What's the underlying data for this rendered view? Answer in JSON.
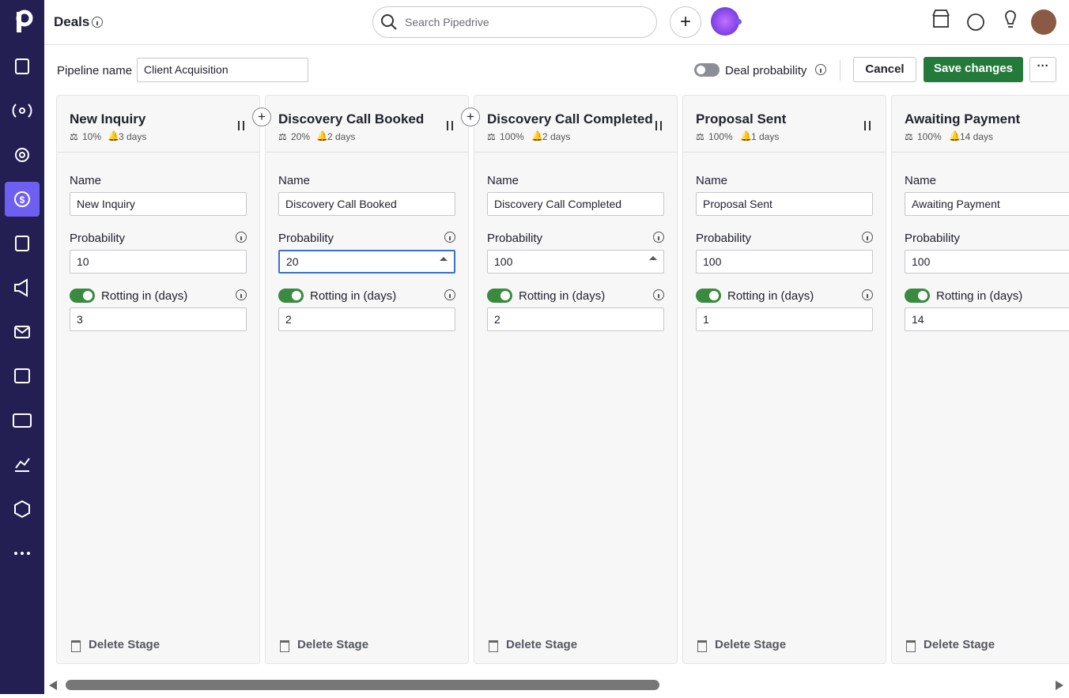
{
  "header": {
    "title": "Deals",
    "search_placeholder": "Search Pipedrive"
  },
  "toolbar": {
    "pipeline_name_label": "Pipeline name",
    "pipeline_name": "Client Acquisition",
    "deal_probability": "Deal probability",
    "cancel": "Cancel",
    "save": "Save changes"
  },
  "stage_labels": {
    "name": "Name",
    "probability": "Probability",
    "rotting": "Rotting in (days)",
    "delete": "Delete Stage"
  },
  "stages": [
    {
      "name": "New Inquiry",
      "summary_probability": "10%",
      "summary_rotting": "3 days",
      "probability": "10",
      "rotting": "3"
    },
    {
      "name": "Discovery Call Booked",
      "summary_probability": "20%",
      "summary_rotting": "2 days",
      "probability": "20",
      "rotting": "2"
    },
    {
      "name": "Discovery Call Completed",
      "summary_probability": "100%",
      "summary_rotting": "2 days",
      "probability": "100",
      "rotting": "2"
    },
    {
      "name": "Proposal Sent",
      "summary_probability": "100%",
      "summary_rotting": "1 days",
      "probability": "100",
      "rotting": "1"
    },
    {
      "name": "Awaiting Payment",
      "summary_probability": "100%",
      "summary_rotting": "14 days",
      "probability": "100",
      "rotting": "14"
    }
  ]
}
